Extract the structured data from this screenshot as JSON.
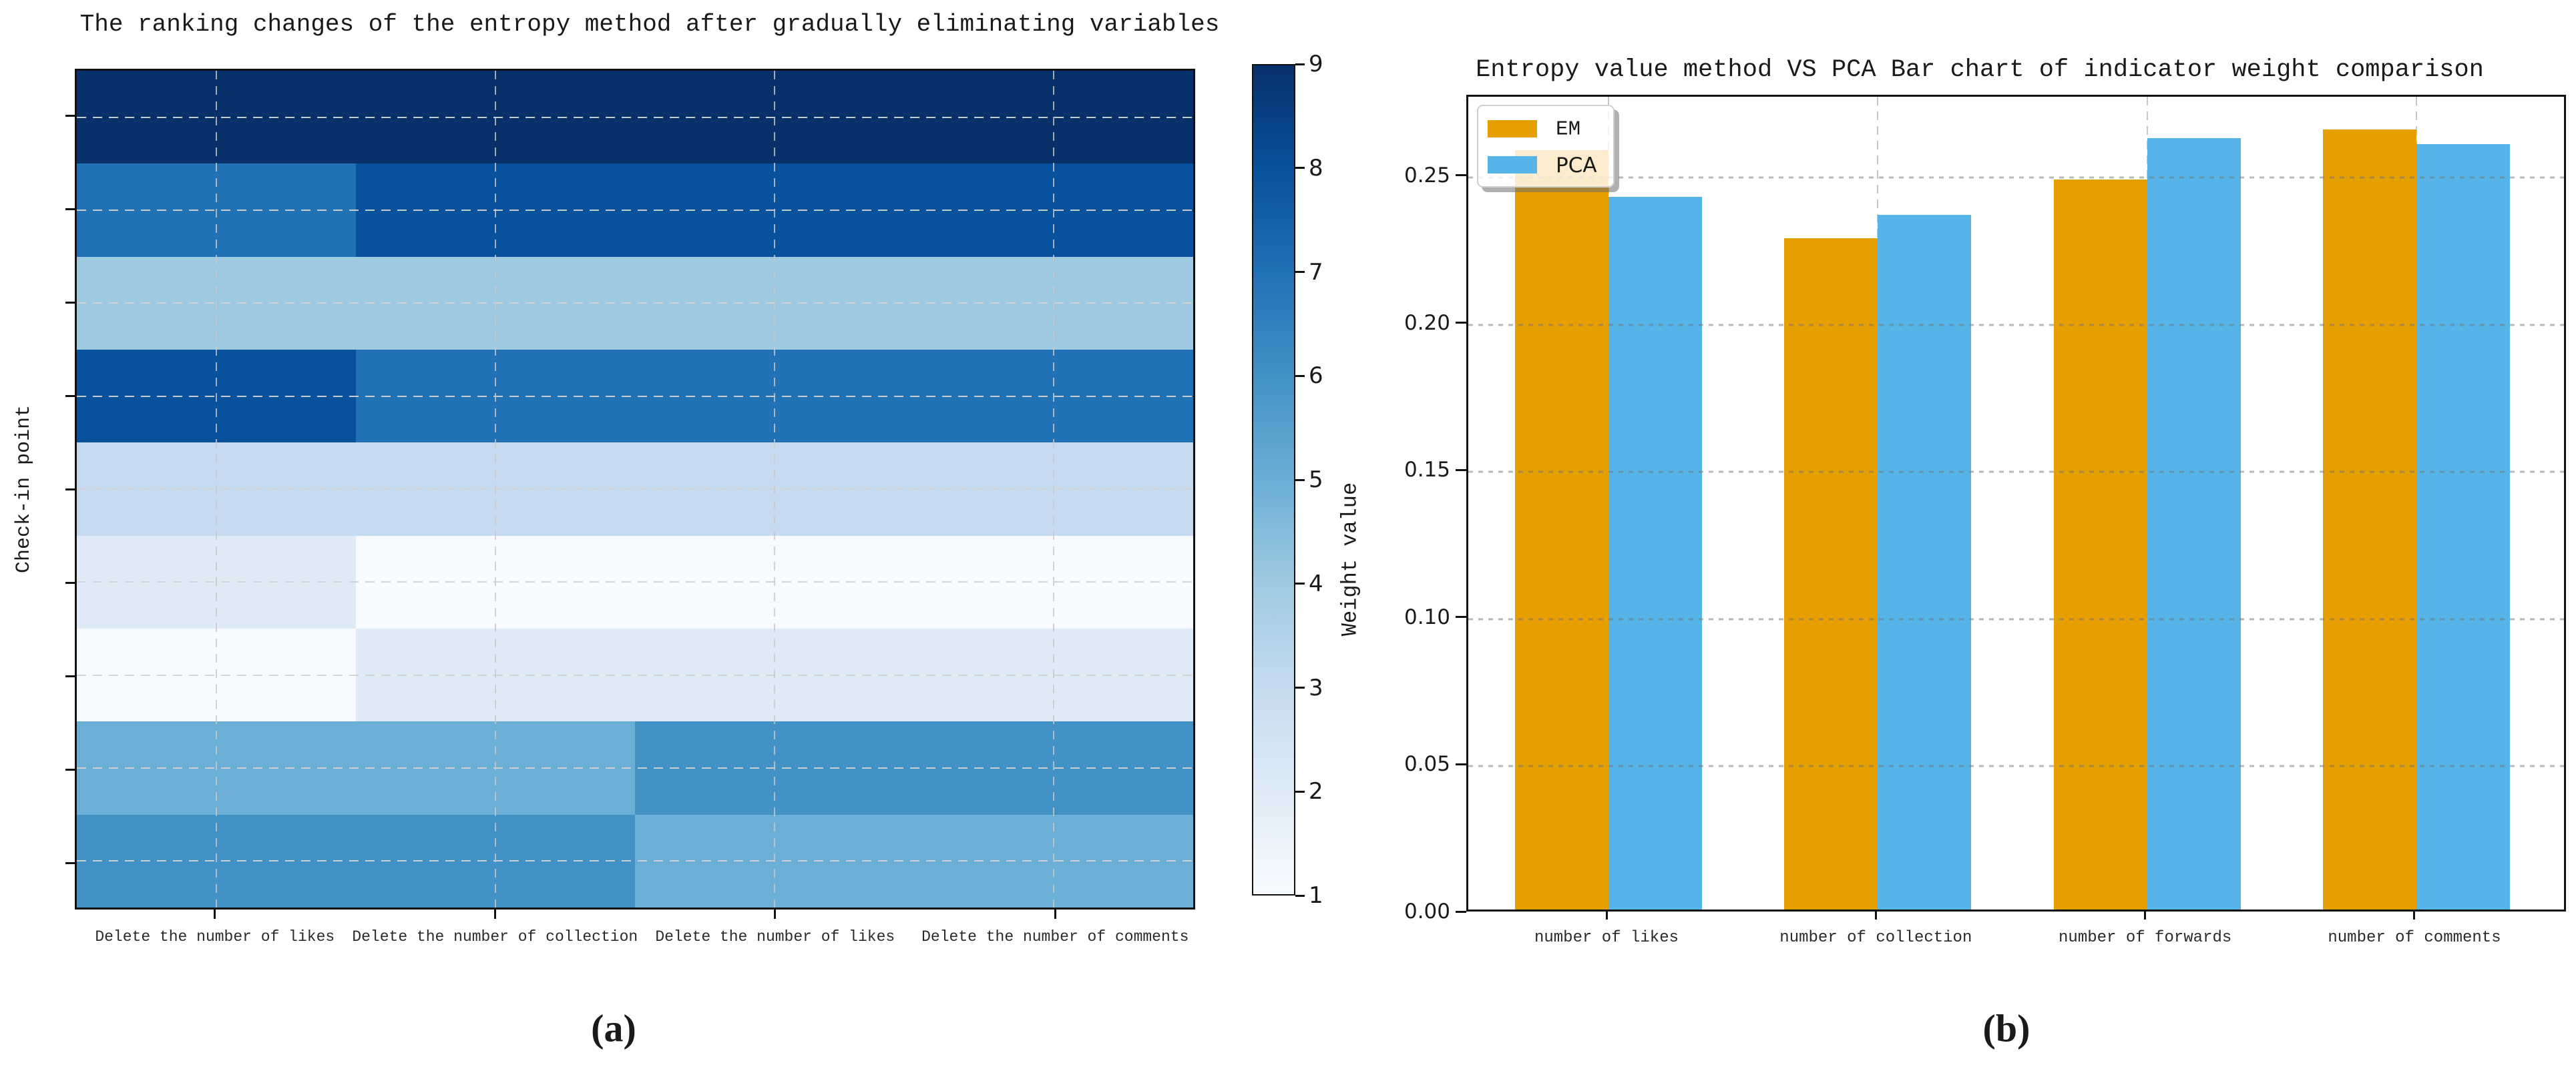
{
  "figure": {
    "caption_a": "(a)",
    "caption_b": "(b)"
  },
  "chart_data": [
    {
      "id": "ranking-heatmap",
      "type": "heatmap",
      "title": "The ranking changes of the entropy method after gradually eliminating variables",
      "ylabel": "Check-in point",
      "x_categories": [
        "Delete the number of likes",
        "Delete the number of collection",
        "Delete the number of likes",
        "Delete the number of comments"
      ],
      "rows": 9,
      "cols": 4,
      "matrix": [
        [
          9,
          9,
          9,
          9
        ],
        [
          7,
          8,
          8,
          8
        ],
        [
          4,
          4,
          4,
          4
        ],
        [
          8,
          7,
          7,
          7
        ],
        [
          3,
          3,
          3,
          3
        ],
        [
          2,
          1,
          1,
          1
        ],
        [
          1,
          2,
          2,
          2
        ],
        [
          5,
          5,
          6,
          6
        ],
        [
          6,
          6,
          5,
          5
        ]
      ],
      "colormap": "Blues",
      "vmin": 1,
      "vmax": 9,
      "colorbar_ticks": [
        9,
        8,
        7,
        6,
        5,
        4,
        3,
        2,
        1
      ],
      "value_colors": {
        "1": "#f7fbff",
        "2": "#deebf7",
        "3": "#c6dbef",
        "4": "#9ecae1",
        "5": "#6baed6",
        "6": "#4292c6",
        "7": "#2171b5",
        "8": "#08519c",
        "9": "#08306b"
      },
      "grid": true,
      "legend_position": "right-colorbar"
    },
    {
      "id": "weight-bars",
      "type": "bar",
      "title": "Entropy value method VS PCA Bar chart of indicator weight comparison",
      "ylabel": "Weight value",
      "xlabel": "",
      "categories": [
        "number of likes",
        "number of collection",
        "number of forwards",
        "number of comments"
      ],
      "series": [
        {
          "name": "EM",
          "color": "#E69F00",
          "values": [
            0.258,
            0.228,
            0.248,
            0.265
          ]
        },
        {
          "name": "PCA",
          "color": "#56B4E9",
          "values": [
            0.242,
            0.236,
            0.262,
            0.26
          ]
        }
      ],
      "ylim": [
        0,
        0.2774
      ],
      "yticks": [
        0.0,
        0.05,
        0.1,
        0.15,
        0.2,
        0.25
      ],
      "ytick_labels": [
        "0.00",
        "0.05",
        "0.10",
        "0.15",
        "0.20",
        "0.25"
      ],
      "grid": true,
      "legend_position": "upper left"
    }
  ]
}
